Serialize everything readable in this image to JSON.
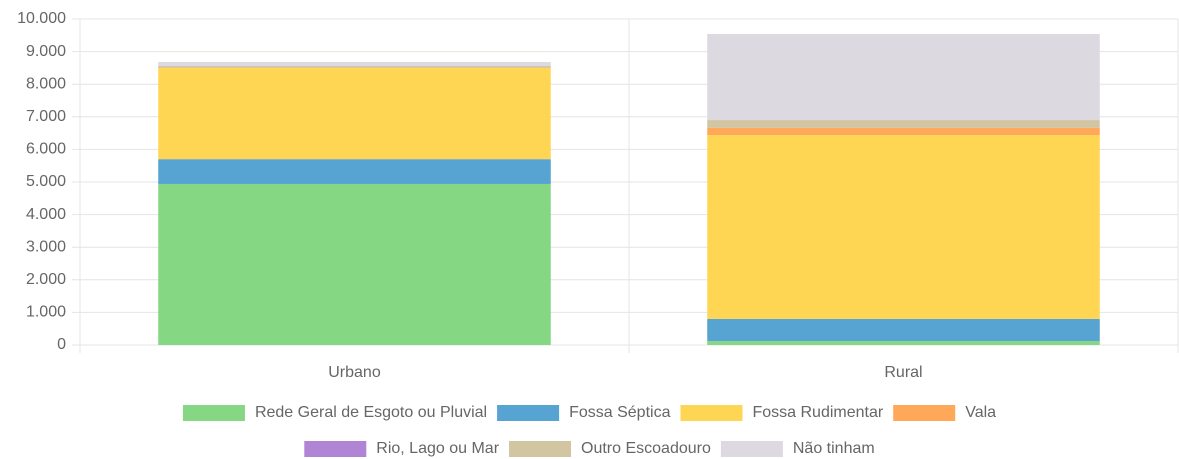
{
  "chart_data": {
    "type": "stacked_bar",
    "categories": [
      "Urbano",
      "Rural"
    ],
    "series": [
      {
        "name": "Rede Geral de Esgoto ou Pluvial",
        "color": "#85d783",
        "values": [
          4940,
          120
        ]
      },
      {
        "name": "Fossa Séptica",
        "color": "#57a3d1",
        "values": [
          760,
          680
        ]
      },
      {
        "name": "Fossa Rudimentar",
        "color": "#ffd654",
        "values": [
          2800,
          5640
        ]
      },
      {
        "name": "Vala",
        "color": "#ffa85a",
        "values": [
          0,
          220
        ]
      },
      {
        "name": "Rio, Lago ou Mar",
        "color": "#b185d5",
        "values": [
          0,
          0
        ]
      },
      {
        "name": "Outro Escoadouro",
        "color": "#d1c5a2",
        "values": [
          60,
          240
        ]
      },
      {
        "name": "Não tinham",
        "color": "#dcdae0",
        "values": [
          120,
          2640
        ]
      }
    ],
    "ylim": [
      0,
      10000
    ],
    "yticks": [
      0,
      {
        "value": 1000,
        "label": "1.000"
      },
      {
        "value": 2000,
        "label": "2.000"
      },
      {
        "value": 3000,
        "label": "3.000"
      },
      {
        "value": 4000,
        "label": "4.000"
      },
      {
        "value": 5000,
        "label": "5.000"
      },
      {
        "value": 6000,
        "label": "6.000"
      },
      {
        "value": 7000,
        "label": "7.000"
      },
      {
        "value": 8000,
        "label": "8.000"
      },
      {
        "value": 9000,
        "label": "9.000"
      },
      {
        "value": 10000,
        "label": "10.000"
      }
    ],
    "grid": true,
    "legend": "bottom"
  }
}
